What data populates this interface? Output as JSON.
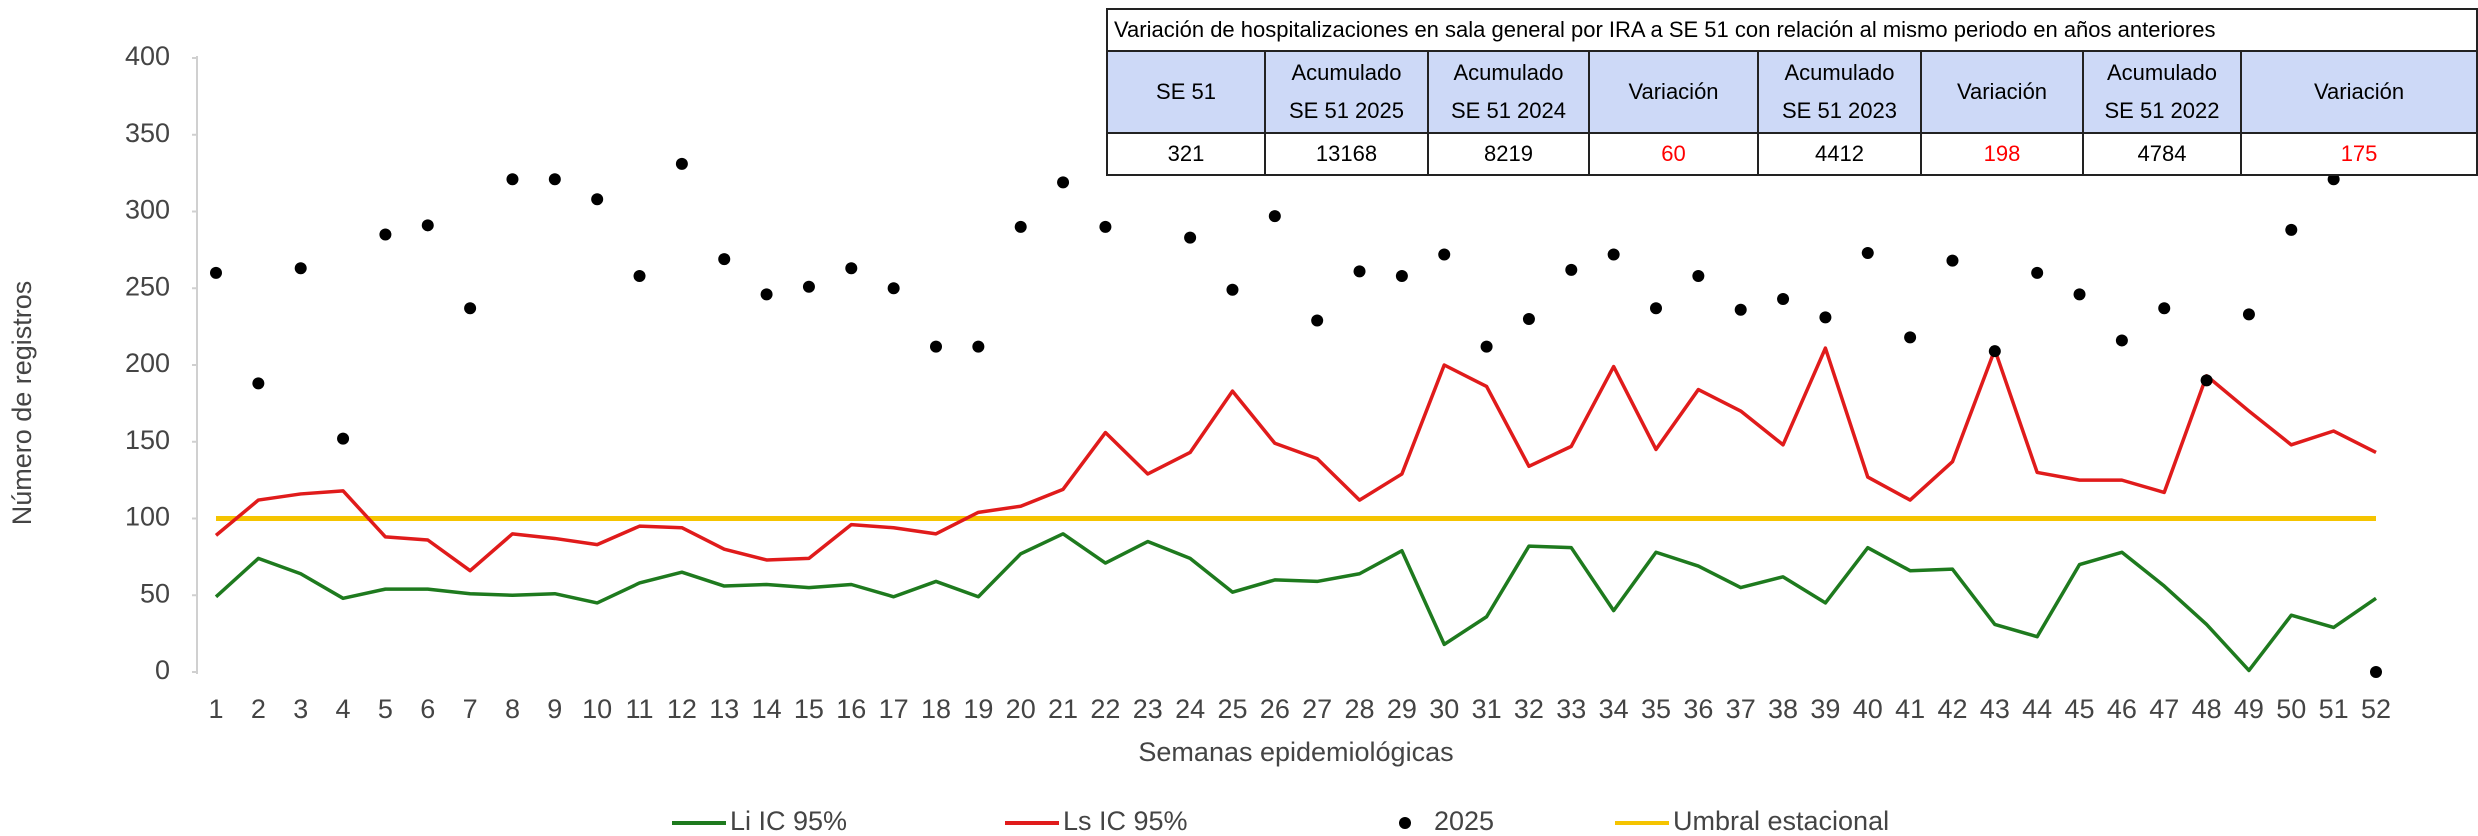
{
  "chart_data": {
    "type": "line",
    "y_label": "Número de registros",
    "x_label": "Semanas epidemiológicas",
    "categories": [
      "1",
      "2",
      "3",
      "4",
      "5",
      "6",
      "7",
      "8",
      "9",
      "10",
      "11",
      "12",
      "13",
      "14",
      "15",
      "16",
      "17",
      "18",
      "19",
      "20",
      "21",
      "22",
      "23",
      "24",
      "25",
      "26",
      "27",
      "28",
      "29",
      "30",
      "31",
      "32",
      "33",
      "34",
      "35",
      "36",
      "37",
      "38",
      "39",
      "40",
      "41",
      "42",
      "43",
      "44",
      "45",
      "46",
      "47",
      "48",
      "49",
      "50",
      "51",
      "52"
    ],
    "ylim": [
      0,
      400
    ],
    "yticks": [
      0,
      50,
      100,
      150,
      200,
      250,
      300,
      350,
      400
    ],
    "series": [
      {
        "name": "Li IC 95%",
        "type": "line",
        "color": "#1e7a1e",
        "values": [
          49,
          74,
          64,
          48,
          54,
          54,
          51,
          50,
          51,
          45,
          58,
          65,
          56,
          57,
          55,
          57,
          49,
          59,
          49,
          77,
          90,
          71,
          85,
          74,
          52,
          60,
          59,
          64,
          79,
          18,
          36,
          82,
          81,
          40,
          78,
          69,
          55,
          62,
          45,
          81,
          66,
          67,
          31,
          23,
          70,
          78,
          56,
          31,
          1,
          37,
          29,
          48
        ]
      },
      {
        "name": "Ls IC 95%",
        "type": "line",
        "color": "#e01b1b",
        "values": [
          89,
          112,
          116,
          118,
          88,
          86,
          66,
          90,
          87,
          83,
          95,
          94,
          80,
          73,
          74,
          96,
          94,
          90,
          104,
          108,
          119,
          156,
          129,
          143,
          183,
          149,
          139,
          112,
          129,
          200,
          186,
          134,
          147,
          199,
          145,
          184,
          170,
          148,
          211,
          127,
          112,
          137,
          210,
          130,
          125,
          125,
          117,
          193,
          170,
          148,
          157,
          143
        ]
      },
      {
        "name": "2025",
        "type": "scatter",
        "color": "#000000",
        "values": [
          260,
          188,
          263,
          152,
          285,
          291,
          237,
          321,
          321,
          308,
          258,
          331,
          269,
          246,
          251,
          263,
          250,
          212,
          212,
          290,
          319,
          290,
          null,
          283,
          249,
          297,
          229,
          261,
          258,
          272,
          212,
          230,
          262,
          272,
          237,
          258,
          236,
          243,
          231,
          273,
          218,
          268,
          209,
          260,
          246,
          216,
          237,
          190,
          233,
          288,
          321,
          0
        ]
      },
      {
        "name": "Umbral estacional",
        "type": "line",
        "color": "#f5c400",
        "values": [
          100,
          100,
          100,
          100,
          100,
          100,
          100,
          100,
          100,
          100,
          100,
          100,
          100,
          100,
          100,
          100,
          100,
          100,
          100,
          100,
          100,
          100,
          100,
          100,
          100,
          100,
          100,
          100,
          100,
          100,
          100,
          100,
          100,
          100,
          100,
          100,
          100,
          100,
          100,
          100,
          100,
          100,
          100,
          100,
          100,
          100,
          100,
          100,
          100,
          100,
          100,
          100
        ]
      }
    ]
  },
  "table": {
    "title": "Variación de hospitalizaciones en sala general por IRA a SE 51 con relación al mismo periodo en años anteriores",
    "headers": [
      [
        "SE 51"
      ],
      [
        "Acumulado",
        "SE 51 2025"
      ],
      [
        "Acumulado",
        "SE 51 2024"
      ],
      [
        "Variación"
      ],
      [
        "Acumulado",
        "SE 51 2023"
      ],
      [
        "Variación"
      ],
      [
        "Acumulado",
        "SE 51 2022"
      ],
      [
        "Variación"
      ]
    ],
    "rows": [
      [
        "321",
        "13168",
        "8219",
        "60",
        "4412",
        "198",
        "4784",
        "175"
      ]
    ],
    "colors": [
      [
        "#000000",
        "#000000",
        "#000000",
        "#ff0000",
        "#000000",
        "#ff0000",
        "#000000",
        "#ff0000"
      ]
    ]
  }
}
